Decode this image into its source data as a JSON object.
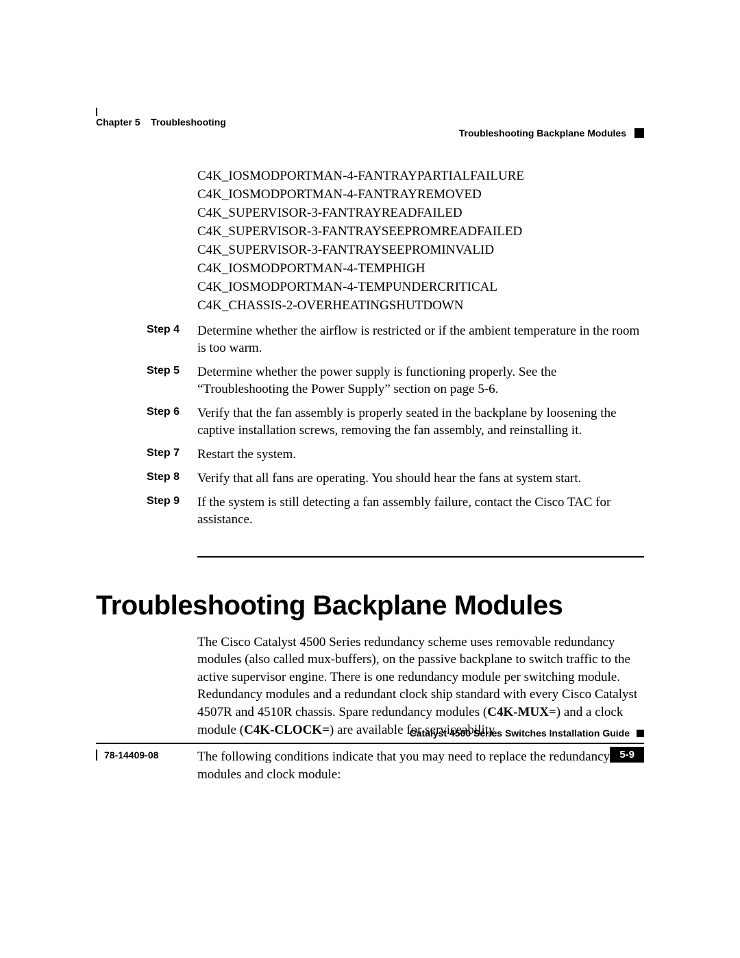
{
  "header": {
    "chapter_label": "Chapter 5",
    "chapter_title": "Troubleshooting",
    "section_title": "Troubleshooting Backplane Modules"
  },
  "messages": [
    "C4K_IOSMODPORTMAN-4-FANTRAYPARTIALFAILURE",
    "C4K_IOSMODPORTMAN-4-FANTRAYREMOVED",
    "C4K_SUPERVISOR-3-FANTRAYREADFAILED",
    "C4K_SUPERVISOR-3-FANTRAYSEEPROMREADFAILED",
    "C4K_SUPERVISOR-3-FANTRAYSEEPROMINVALID",
    "C4K_IOSMODPORTMAN-4-TEMPHIGH",
    "C4K_IOSMODPORTMAN-4-TEMPUNDERCRITICAL",
    "C4K_CHASSIS-2-OVERHEATINGSHUTDOWN"
  ],
  "steps": [
    {
      "label": "Step 4",
      "text": "Determine whether the airflow is restricted or if the ambient temperature in the room is too warm."
    },
    {
      "label": "Step 5",
      "text": "Determine whether the power supply is functioning properly. See the “Troubleshooting the Power Supply” section on page 5-6."
    },
    {
      "label": "Step 6",
      "text": "Verify that the fan assembly is properly seated in the backplane by loosening the captive installation screws, removing the fan assembly, and reinstalling it."
    },
    {
      "label": "Step 7",
      "text": "Restart the system."
    },
    {
      "label": "Step 8",
      "text": "Verify that all fans are operating. You should hear the fans at system start."
    },
    {
      "label": "Step 9",
      "text": "If the system is still detecting a fan assembly failure, contact the Cisco TAC for assistance."
    }
  ],
  "section_heading": "Troubleshooting Backplane Modules",
  "intro_para_pre": "The Cisco Catalyst 4500 Series redundancy scheme uses removable redundancy modules (also called mux-buffers), on the passive backplane to switch traffic to the active supervisor engine. There is one redundancy module per switching module. Redundancy modules and a redundant clock ship standard with every Cisco Catalyst 4507R and 4510R chassis. Spare redundancy modules (",
  "intro_bold1": "C4K-MUX=",
  "intro_mid": ") and a clock module (",
  "intro_bold2": "C4K-CLOCK=",
  "intro_post": ") are available for serviceability.",
  "second_para": "The following conditions indicate that you may need to replace the redundancy modules and clock module:",
  "footer": {
    "guide_title": "Catalyst 4500 Series Switches Installation Guide",
    "doc_number": "78-14409-08",
    "page_number": "5-9"
  },
  "style": {
    "page_bg": "#ffffff",
    "text_color": "#000000",
    "heading_font": "Arial",
    "body_font": "Times New Roman",
    "heading_fontsize_pt": 30,
    "body_fontsize_pt": 14,
    "step_label_fontsize_pt": 12,
    "footer_fontsize_pt": 10
  }
}
